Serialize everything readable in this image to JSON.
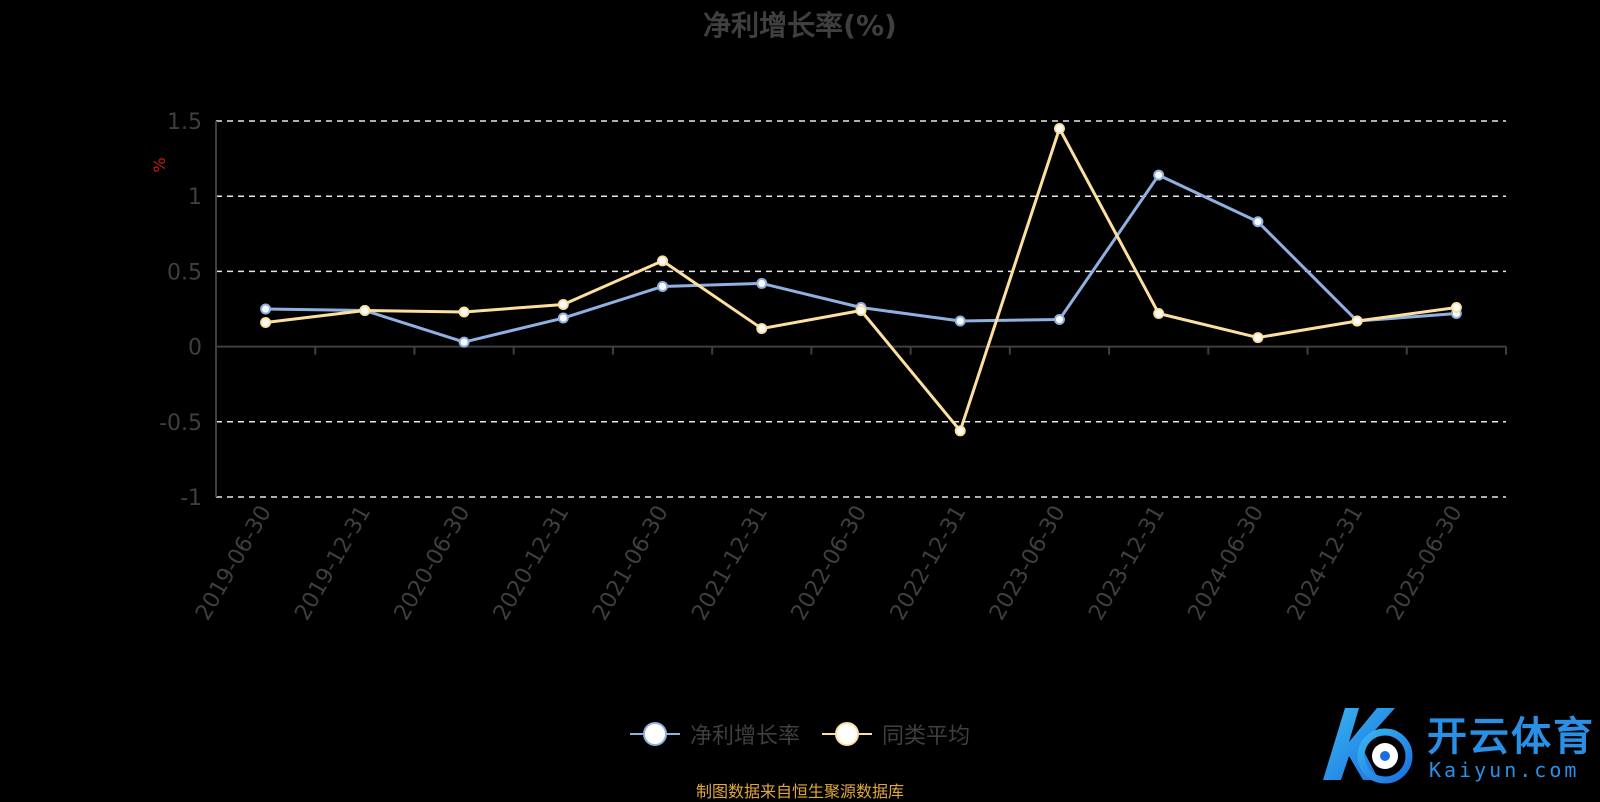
{
  "chart_data": {
    "type": "line",
    "title": "净利增长率(%)",
    "ylabel": "%",
    "categories": [
      "2019-06-30",
      "2019-12-31",
      "2020-06-30",
      "2020-12-31",
      "2021-06-30",
      "2021-12-31",
      "2022-06-30",
      "2022-12-31",
      "2023-06-30",
      "2023-12-31",
      "2024-06-30",
      "2024-12-31",
      "2025-06-30"
    ],
    "series": [
      {
        "name": "净利增长率",
        "color": "#8fb0e0",
        "values": [
          0.25,
          0.24,
          0.03,
          0.19,
          0.4,
          0.42,
          0.26,
          0.17,
          0.18,
          1.14,
          0.83,
          0.17,
          0.22
        ]
      },
      {
        "name": "同类平均",
        "color": "#fde0a0",
        "values": [
          0.16,
          0.24,
          0.23,
          0.28,
          0.57,
          0.12,
          0.24,
          -0.56,
          1.45,
          0.22,
          0.06,
          0.17,
          0.26
        ]
      }
    ],
    "ylim": [
      -1,
      1.5
    ],
    "yticks": [
      "1.5",
      "1",
      "0.5",
      "0",
      "-0.5",
      "-1"
    ],
    "ytick_values": [
      1.5,
      1,
      0.5,
      0,
      -0.5,
      -1
    ],
    "grid": true,
    "legend_position": "bottom-center"
  },
  "source_note": "制图数据来自恒生聚源数据库",
  "watermark": {
    "name": "开云体育",
    "url_text": "Kaiyun.com",
    "colors": [
      "#1a7be0",
      "#39b6f0"
    ]
  }
}
